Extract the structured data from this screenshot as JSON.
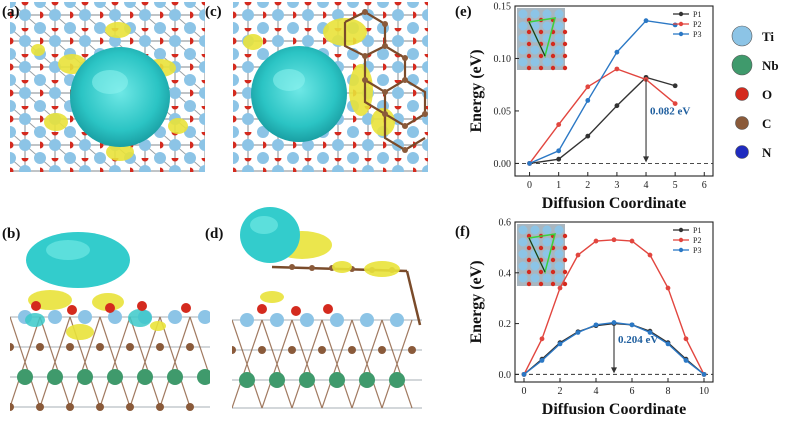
{
  "panel_labels": [
    "(a)",
    "(b)",
    "(c)",
    "(d)",
    "(e)",
    "(f)"
  ],
  "atom_legend": [
    {
      "label": "Ti",
      "color": "#8cc4e6"
    },
    {
      "label": "Nb",
      "color": "#3f9a6c"
    },
    {
      "label": "O",
      "color": "#d42a1e"
    },
    {
      "label": "C",
      "color": "#8a5a3a"
    },
    {
      "label": "N",
      "color": "#1f2bbf"
    }
  ],
  "chart_data": [
    {
      "id": "e",
      "type": "line",
      "xlabel": "Diffusion Coordinate",
      "ylabel": "Energy (eV)",
      "xlim": [
        -0.5,
        6.3
      ],
      "ylim": [
        -0.012,
        0.15
      ],
      "xticks": [
        0,
        1,
        2,
        3,
        4,
        5,
        6
      ],
      "yticks": [
        0.0,
        0.05,
        0.1,
        0.15
      ],
      "ytick_labels": [
        "0.00",
        "0.05",
        "0.10",
        "0.15"
      ],
      "legend_position": "top-right",
      "annotation": {
        "text": "0.082 eV",
        "x": 4,
        "y": 0.082
      },
      "series": [
        {
          "name": "P1",
          "color": "#333333",
          "x": [
            0,
            1,
            2,
            3,
            4,
            5
          ],
          "y": [
            0.0,
            0.004,
            0.026,
            0.055,
            0.082,
            0.074
          ]
        },
        {
          "name": "P2",
          "color": "#e2463f",
          "x": [
            0,
            1,
            2,
            3,
            4,
            5
          ],
          "y": [
            0.0,
            0.037,
            0.073,
            0.09,
            0.08,
            0.057
          ]
        },
        {
          "name": "P3",
          "color": "#2b78c5",
          "x": [
            0,
            1,
            2,
            3,
            4,
            5
          ],
          "y": [
            0.0,
            0.012,
            0.06,
            0.106,
            0.136,
            0.132
          ]
        }
      ]
    },
    {
      "id": "f",
      "type": "line",
      "xlabel": "Diffusion Coordinate",
      "ylabel": "Energy (eV)",
      "xlim": [
        -0.5,
        10.5
      ],
      "ylim": [
        -0.03,
        0.6
      ],
      "xticks": [
        0,
        2,
        4,
        6,
        8,
        10
      ],
      "yticks": [
        0.0,
        0.2,
        0.4,
        0.6
      ],
      "ytick_labels": [
        "0.0",
        "0.2",
        "0.4",
        "0.6"
      ],
      "legend_position": "top-right",
      "annotation": {
        "text": "0.204 eV",
        "x": 5,
        "y": 0.2
      },
      "series": [
        {
          "name": "P1",
          "color": "#333333",
          "x": [
            0,
            1,
            2,
            3,
            4,
            5,
            6,
            7,
            8,
            9,
            10
          ],
          "y": [
            0.0,
            0.06,
            0.125,
            0.168,
            0.192,
            0.2,
            0.195,
            0.17,
            0.125,
            0.06,
            0.0
          ]
        },
        {
          "name": "P2",
          "color": "#e2463f",
          "x": [
            0,
            1,
            2,
            3,
            4,
            5,
            6,
            7,
            8,
            9,
            10
          ],
          "y": [
            0.0,
            0.14,
            0.34,
            0.47,
            0.525,
            0.53,
            0.525,
            0.47,
            0.34,
            0.14,
            0.0
          ]
        },
        {
          "name": "P3",
          "color": "#2b78c5",
          "x": [
            0,
            1,
            2,
            3,
            4,
            5,
            6,
            7,
            8,
            9,
            10
          ],
          "y": [
            0.0,
            0.055,
            0.12,
            0.165,
            0.195,
            0.204,
            0.195,
            0.165,
            0.12,
            0.055,
            0.0
          ]
        }
      ]
    }
  ]
}
